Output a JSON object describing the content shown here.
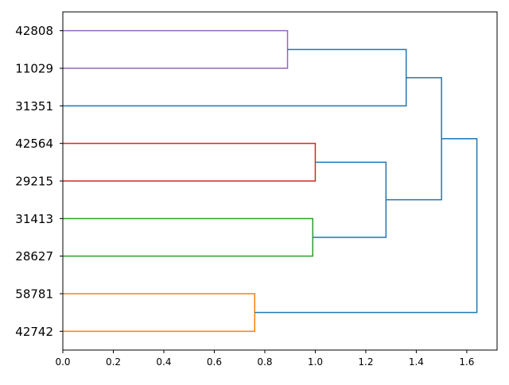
{
  "chart_data": {
    "type": "dendrogram",
    "orientation": "horizontal",
    "title": "",
    "xlabel": "",
    "ylabel": "",
    "xlim": [
      0,
      1.72
    ],
    "x_ticks": [
      0.0,
      0.2,
      0.4,
      0.6,
      0.8,
      1.0,
      1.2,
      1.4,
      1.6
    ],
    "x_tick_labels": [
      "0.0",
      "0.2",
      "0.4",
      "0.6",
      "0.8",
      "1.0",
      "1.2",
      "1.4",
      "1.6"
    ],
    "leaves": [
      "42808",
      "11029",
      "31351",
      "42564",
      "29215",
      "31413",
      "28627",
      "58781",
      "42742"
    ],
    "links": [
      {
        "id": "c1",
        "a": "42808",
        "b": "11029",
        "height": 0.89,
        "color": "#9467bd"
      },
      {
        "id": "c2",
        "a": "c1",
        "b": "31351",
        "height": 1.36,
        "color": "#1f77b4"
      },
      {
        "id": "c3",
        "a": "42564",
        "b": "29215",
        "height": 1.0,
        "color": "#d62728"
      },
      {
        "id": "c4",
        "a": "31413",
        "b": "28627",
        "height": 0.99,
        "color": "#2ca02c"
      },
      {
        "id": "c5",
        "a": "c3",
        "b": "c4",
        "height": 1.28,
        "color": "#1f77b4"
      },
      {
        "id": "c6",
        "a": "c2",
        "b": "c5",
        "height": 1.5,
        "color": "#1f77b4"
      },
      {
        "id": "c7",
        "a": "58781",
        "b": "42742",
        "height": 0.76,
        "color": "#ff7f0e"
      },
      {
        "id": "c8",
        "a": "c6",
        "b": "c7",
        "height": 1.64,
        "color": "#1f77b4"
      }
    ],
    "grid": false
  }
}
